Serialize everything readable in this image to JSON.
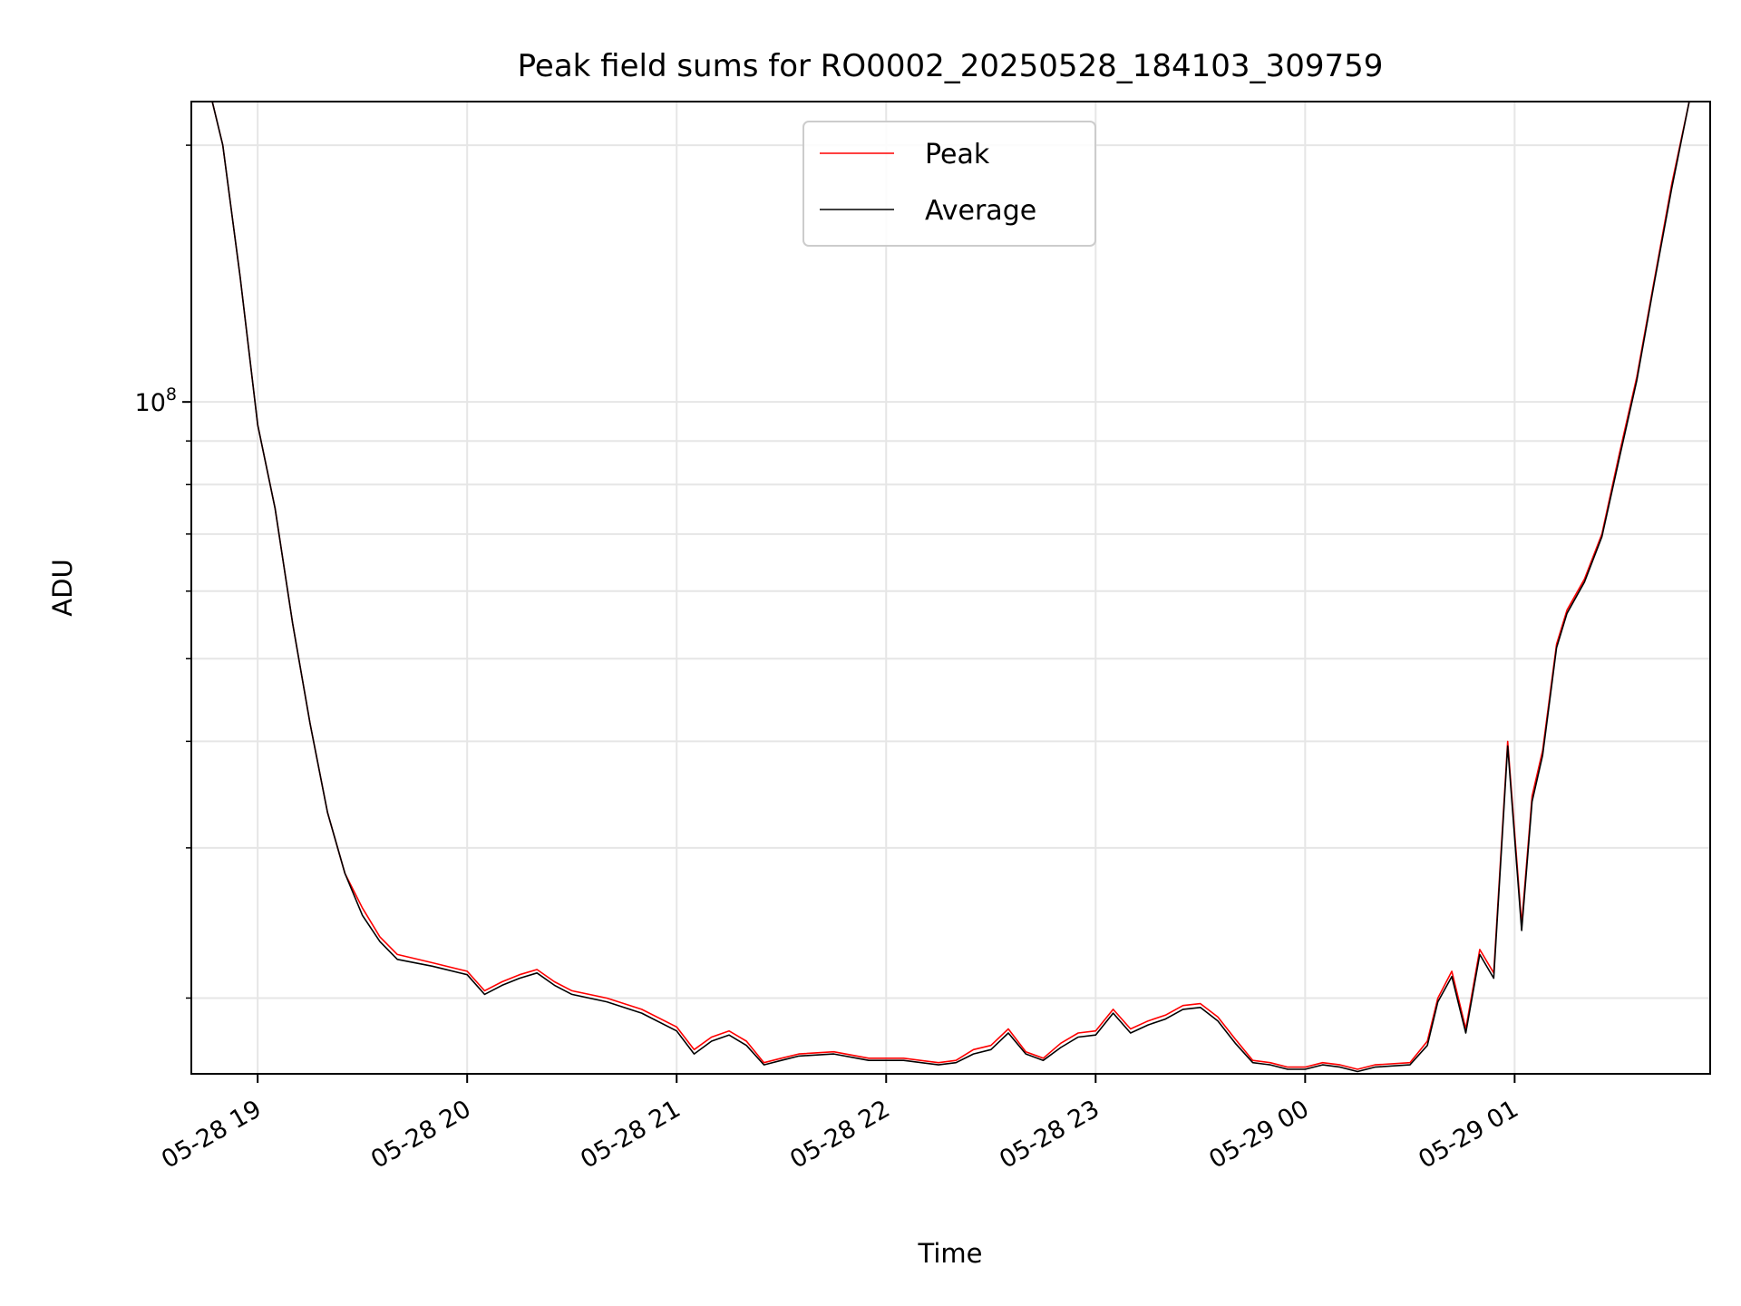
{
  "chart_data": {
    "type": "line",
    "title": "Peak field sums for RO0002_20250528_184103_309759",
    "xlabel": "Time",
    "ylabel": "ADU",
    "y_scale": "log",
    "ylim": [
      16300000,
      225000000
    ],
    "x_range": [
      "2025-05-28 18:41",
      "2025-05-29 01:56"
    ],
    "x_ticks": [
      {
        "time": "2025-05-28 19:00",
        "label": "05-28 19"
      },
      {
        "time": "2025-05-28 20:00",
        "label": "05-28 20"
      },
      {
        "time": "2025-05-28 21:00",
        "label": "05-28 21"
      },
      {
        "time": "2025-05-28 22:00",
        "label": "05-28 22"
      },
      {
        "time": "2025-05-28 23:00",
        "label": "05-28 23"
      },
      {
        "time": "2025-05-29 00:00",
        "label": "05-29 00"
      },
      {
        "time": "2025-05-29 01:00",
        "label": "05-29 01"
      }
    ],
    "y_major_ticks": [
      {
        "value": 100000000,
        "base": "10",
        "exp": "8"
      }
    ],
    "y_minor_tick_values": [
      20000000,
      30000000,
      40000000,
      50000000,
      60000000,
      70000000,
      80000000,
      90000000,
      200000000
    ],
    "grid": true,
    "legend": "top-center",
    "series": [
      {
        "name": "Peak",
        "color": "#ff0000",
        "x": [
          "2025-05-28 18:41",
          "2025-05-28 18:47",
          "2025-05-28 18:50",
          "2025-05-28 18:55",
          "2025-05-28 19:00",
          "2025-05-28 19:05",
          "2025-05-28 19:10",
          "2025-05-28 19:15",
          "2025-05-28 19:20",
          "2025-05-28 19:25",
          "2025-05-28 19:30",
          "2025-05-28 19:35",
          "2025-05-28 19:40",
          "2025-05-28 19:50",
          "2025-05-28 20:00",
          "2025-05-28 20:05",
          "2025-05-28 20:10",
          "2025-05-28 20:15",
          "2025-05-28 20:20",
          "2025-05-28 20:25",
          "2025-05-28 20:30",
          "2025-05-28 20:40",
          "2025-05-28 20:50",
          "2025-05-28 21:00",
          "2025-05-28 21:05",
          "2025-05-28 21:10",
          "2025-05-28 21:15",
          "2025-05-28 21:20",
          "2025-05-28 21:25",
          "2025-05-28 21:30",
          "2025-05-28 21:35",
          "2025-05-28 21:45",
          "2025-05-28 21:55",
          "2025-05-28 22:05",
          "2025-05-28 22:15",
          "2025-05-28 22:20",
          "2025-05-28 22:25",
          "2025-05-28 22:30",
          "2025-05-28 22:35",
          "2025-05-28 22:40",
          "2025-05-28 22:45",
          "2025-05-28 22:50",
          "2025-05-28 22:55",
          "2025-05-28 23:00",
          "2025-05-28 23:05",
          "2025-05-28 23:10",
          "2025-05-28 23:15",
          "2025-05-28 23:20",
          "2025-05-28 23:25",
          "2025-05-28 23:30",
          "2025-05-28 23:35",
          "2025-05-28 23:40",
          "2025-05-28 23:45",
          "2025-05-28 23:50",
          "2025-05-28 23:55",
          "2025-05-29 00:00",
          "2025-05-29 00:05",
          "2025-05-29 00:10",
          "2025-05-29 00:15",
          "2025-05-29 00:20",
          "2025-05-29 00:30",
          "2025-05-29 00:35",
          "2025-05-29 00:38",
          "2025-05-29 00:42",
          "2025-05-29 00:46",
          "2025-05-29 00:50",
          "2025-05-29 00:54",
          "2025-05-29 00:58",
          "2025-05-29 01:02",
          "2025-05-29 01:05",
          "2025-05-29 01:08",
          "2025-05-29 01:12",
          "2025-05-29 01:15",
          "2025-05-29 01:20",
          "2025-05-29 01:25",
          "2025-05-29 01:30",
          "2025-05-29 01:35",
          "2025-05-29 01:40",
          "2025-05-29 01:45",
          "2025-05-29 01:50",
          "2025-05-29 01:56"
        ],
        "y": [
          225000000,
          225000000,
          200000000,
          140000000,
          94000000,
          75000000,
          55000000,
          42000000,
          33000000,
          28000000,
          25500000,
          23600000,
          22500000,
          22000000,
          21500000,
          20400000,
          20900000,
          21300000,
          21600000,
          20900000,
          20400000,
          20000000,
          19400000,
          18500000,
          17400000,
          18000000,
          18300000,
          17800000,
          16800000,
          17000000,
          17200000,
          17300000,
          17000000,
          17000000,
          16800000,
          16900000,
          17400000,
          17600000,
          18400000,
          17300000,
          17000000,
          17700000,
          18200000,
          18300000,
          19400000,
          18400000,
          18800000,
          19100000,
          19600000,
          19700000,
          19000000,
          17900000,
          16900000,
          16800000,
          16600000,
          16600000,
          16800000,
          16700000,
          16500000,
          16700000,
          16800000,
          17800000,
          20000000,
          21500000,
          18400000,
          22800000,
          21400000,
          40000000,
          24400000,
          34500000,
          39000000,
          52000000,
          57000000,
          62000000,
          70000000,
          87000000,
          107000000,
          139000000,
          180000000,
          225000000,
          225000000
        ]
      },
      {
        "name": "Average",
        "color": "#000000",
        "x": [
          "2025-05-28 18:41",
          "2025-05-28 18:47",
          "2025-05-28 18:50",
          "2025-05-28 18:55",
          "2025-05-28 19:00",
          "2025-05-28 19:05",
          "2025-05-28 19:10",
          "2025-05-28 19:15",
          "2025-05-28 19:20",
          "2025-05-28 19:25",
          "2025-05-28 19:30",
          "2025-05-28 19:35",
          "2025-05-28 19:40",
          "2025-05-28 19:50",
          "2025-05-28 20:00",
          "2025-05-28 20:05",
          "2025-05-28 20:10",
          "2025-05-28 20:15",
          "2025-05-28 20:20",
          "2025-05-28 20:25",
          "2025-05-28 20:30",
          "2025-05-28 20:40",
          "2025-05-28 20:50",
          "2025-05-28 21:00",
          "2025-05-28 21:05",
          "2025-05-28 21:10",
          "2025-05-28 21:15",
          "2025-05-28 21:20",
          "2025-05-28 21:25",
          "2025-05-28 21:30",
          "2025-05-28 21:35",
          "2025-05-28 21:45",
          "2025-05-28 21:55",
          "2025-05-28 22:05",
          "2025-05-28 22:15",
          "2025-05-28 22:20",
          "2025-05-28 22:25",
          "2025-05-28 22:30",
          "2025-05-28 22:35",
          "2025-05-28 22:40",
          "2025-05-28 22:45",
          "2025-05-28 22:50",
          "2025-05-28 22:55",
          "2025-05-28 23:00",
          "2025-05-28 23:05",
          "2025-05-28 23:10",
          "2025-05-28 23:15",
          "2025-05-28 23:20",
          "2025-05-28 23:25",
          "2025-05-28 23:30",
          "2025-05-28 23:35",
          "2025-05-28 23:40",
          "2025-05-28 23:45",
          "2025-05-28 23:50",
          "2025-05-28 23:55",
          "2025-05-29 00:00",
          "2025-05-29 00:05",
          "2025-05-29 00:10",
          "2025-05-29 00:15",
          "2025-05-29 00:20",
          "2025-05-29 00:30",
          "2025-05-29 00:35",
          "2025-05-29 00:38",
          "2025-05-29 00:42",
          "2025-05-29 00:46",
          "2025-05-29 00:50",
          "2025-05-29 00:54",
          "2025-05-29 00:58",
          "2025-05-29 01:02",
          "2025-05-29 01:05",
          "2025-05-29 01:08",
          "2025-05-29 01:12",
          "2025-05-29 01:15",
          "2025-05-29 01:20",
          "2025-05-29 01:25",
          "2025-05-29 01:30",
          "2025-05-29 01:35",
          "2025-05-29 01:40",
          "2025-05-29 01:45",
          "2025-05-29 01:50",
          "2025-05-29 01:56"
        ],
        "y": [
          225000000,
          225000000,
          200000000,
          140000000,
          94000000,
          75000000,
          55000000,
          42000000,
          33000000,
          28000000,
          25000000,
          23300000,
          22200000,
          21800000,
          21300000,
          20200000,
          20700000,
          21100000,
          21400000,
          20700000,
          20200000,
          19800000,
          19200000,
          18300000,
          17200000,
          17800000,
          18100000,
          17600000,
          16700000,
          16900000,
          17100000,
          17200000,
          16900000,
          16900000,
          16700000,
          16800000,
          17200000,
          17400000,
          18200000,
          17200000,
          16900000,
          17500000,
          18000000,
          18100000,
          19200000,
          18200000,
          18600000,
          18900000,
          19400000,
          19500000,
          18800000,
          17700000,
          16800000,
          16700000,
          16500000,
          16500000,
          16700000,
          16600000,
          16400000,
          16600000,
          16700000,
          17600000,
          19800000,
          21200000,
          18200000,
          22500000,
          21100000,
          39500000,
          24000000,
          34000000,
          38500000,
          51500000,
          56500000,
          61500000,
          69500000,
          86000000,
          106000000,
          138000000,
          178000000,
          225000000,
          225000000
        ]
      }
    ]
  }
}
